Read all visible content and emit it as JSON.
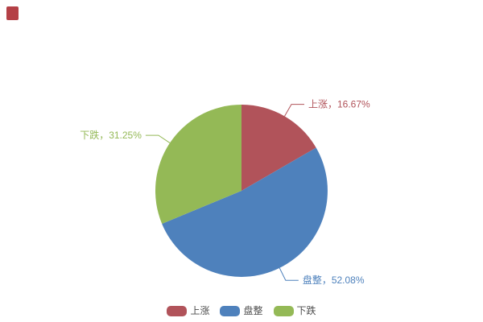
{
  "page": {
    "background": "#ffffff"
  },
  "corner_marker": {
    "color": "#b44046"
  },
  "chart_data": {
    "type": "pie",
    "title": "",
    "categories": [
      "上涨",
      "盘整",
      "下跌"
    ],
    "values": [
      16.67,
      52.08,
      31.25
    ],
    "value_unit": "%",
    "slice_labels": [
      "上涨，16.67%",
      "盘整，52.08%",
      "下跌，31.25%"
    ],
    "colors": [
      "#b1535a",
      "#4e81bc",
      "#94b956"
    ],
    "start_angle_deg_from_top": 0,
    "clockwise": true,
    "label_position": "outside-with-leader-lines",
    "legend": {
      "position": "bottom-center",
      "items": [
        "上涨",
        "盘整",
        "下跌"
      ],
      "text_color": "#4d4d4d"
    }
  }
}
